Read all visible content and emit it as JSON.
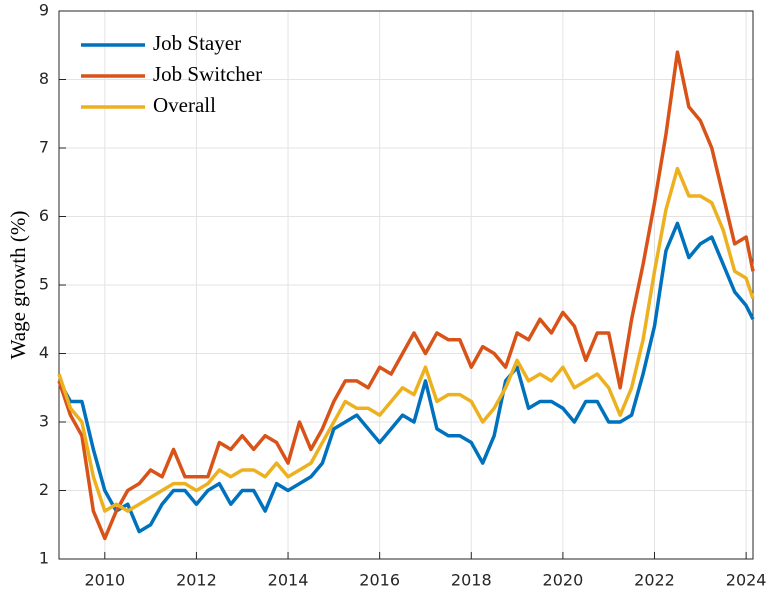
{
  "chart_data": {
    "type": "line",
    "y_label": "Wage growth (%)",
    "x": [
      2009,
      2009.25,
      2009.5,
      2009.75,
      2010,
      2010.25,
      2010.5,
      2010.75,
      2011,
      2011.25,
      2011.5,
      2011.75,
      2012,
      2012.25,
      2012.5,
      2012.75,
      2013,
      2013.25,
      2013.5,
      2013.75,
      2014,
      2014.25,
      2014.5,
      2014.75,
      2015,
      2015.25,
      2015.5,
      2015.75,
      2016,
      2016.25,
      2016.5,
      2016.75,
      2017,
      2017.25,
      2017.5,
      2017.75,
      2018,
      2018.25,
      2018.5,
      2018.75,
      2019,
      2019.25,
      2019.5,
      2019.75,
      2020,
      2020.25,
      2020.5,
      2020.75,
      2021,
      2021.25,
      2021.5,
      2021.75,
      2022,
      2022.25,
      2022.5,
      2022.75,
      2023,
      2023.25,
      2023.5,
      2023.75,
      2024,
      2024.15
    ],
    "series": [
      {
        "name": "Job Stayer",
        "color": "#0072bd",
        "values": [
          3.6,
          3.3,
          3.3,
          2.6,
          2.0,
          1.7,
          1.8,
          1.4,
          1.5,
          1.8,
          2.0,
          2.0,
          1.8,
          2.0,
          2.1,
          1.8,
          2.0,
          2.0,
          1.7,
          2.1,
          2.0,
          2.1,
          2.2,
          2.4,
          2.9,
          3.0,
          3.1,
          2.9,
          2.7,
          2.9,
          3.1,
          3.0,
          3.6,
          2.9,
          2.8,
          2.8,
          2.7,
          2.4,
          2.8,
          3.6,
          3.8,
          3.2,
          3.3,
          3.3,
          3.2,
          3.0,
          3.3,
          3.3,
          3.0,
          3.0,
          3.1,
          3.7,
          4.4,
          5.5,
          5.9,
          5.4,
          5.6,
          5.7,
          5.3,
          4.9,
          4.7,
          4.5
        ]
      },
      {
        "name": "Job Switcher",
        "color": "#d95319",
        "values": [
          3.6,
          3.1,
          2.8,
          1.7,
          1.3,
          1.7,
          2.0,
          2.1,
          2.3,
          2.2,
          2.6,
          2.2,
          2.2,
          2.2,
          2.7,
          2.6,
          2.8,
          2.6,
          2.8,
          2.7,
          2.4,
          3.0,
          2.6,
          2.9,
          3.3,
          3.6,
          3.6,
          3.5,
          3.8,
          3.7,
          4.0,
          4.3,
          4.0,
          4.3,
          4.2,
          4.2,
          3.8,
          4.1,
          4.0,
          3.8,
          4.3,
          4.2,
          4.5,
          4.3,
          4.6,
          4.4,
          3.9,
          4.3,
          4.3,
          3.5,
          4.5,
          5.3,
          6.2,
          7.2,
          8.4,
          7.6,
          7.4,
          7.0,
          6.3,
          5.6,
          5.7,
          5.2
        ]
      },
      {
        "name": "Overall",
        "color": "#edb120",
        "values": [
          3.7,
          3.2,
          3.0,
          2.2,
          1.7,
          1.8,
          1.7,
          1.8,
          1.9,
          2.0,
          2.1,
          2.1,
          2.0,
          2.1,
          2.3,
          2.2,
          2.3,
          2.3,
          2.2,
          2.4,
          2.2,
          2.3,
          2.4,
          2.7,
          3.0,
          3.3,
          3.2,
          3.2,
          3.1,
          3.3,
          3.5,
          3.4,
          3.8,
          3.3,
          3.4,
          3.4,
          3.3,
          3.0,
          3.2,
          3.5,
          3.9,
          3.6,
          3.7,
          3.6,
          3.8,
          3.5,
          3.6,
          3.7,
          3.5,
          3.1,
          3.5,
          4.2,
          5.2,
          6.1,
          6.7,
          6.3,
          6.3,
          6.2,
          5.8,
          5.2,
          5.1,
          4.8
        ]
      }
    ],
    "xlim": [
      2009,
      2024.15
    ],
    "xticks": [
      2010,
      2012,
      2014,
      2016,
      2018,
      2020,
      2022,
      2024
    ],
    "ylim": [
      1,
      9
    ],
    "yticks": [
      1,
      2,
      3,
      4,
      5,
      6,
      7,
      8,
      9
    ],
    "grid": true,
    "legend": "top-left"
  }
}
